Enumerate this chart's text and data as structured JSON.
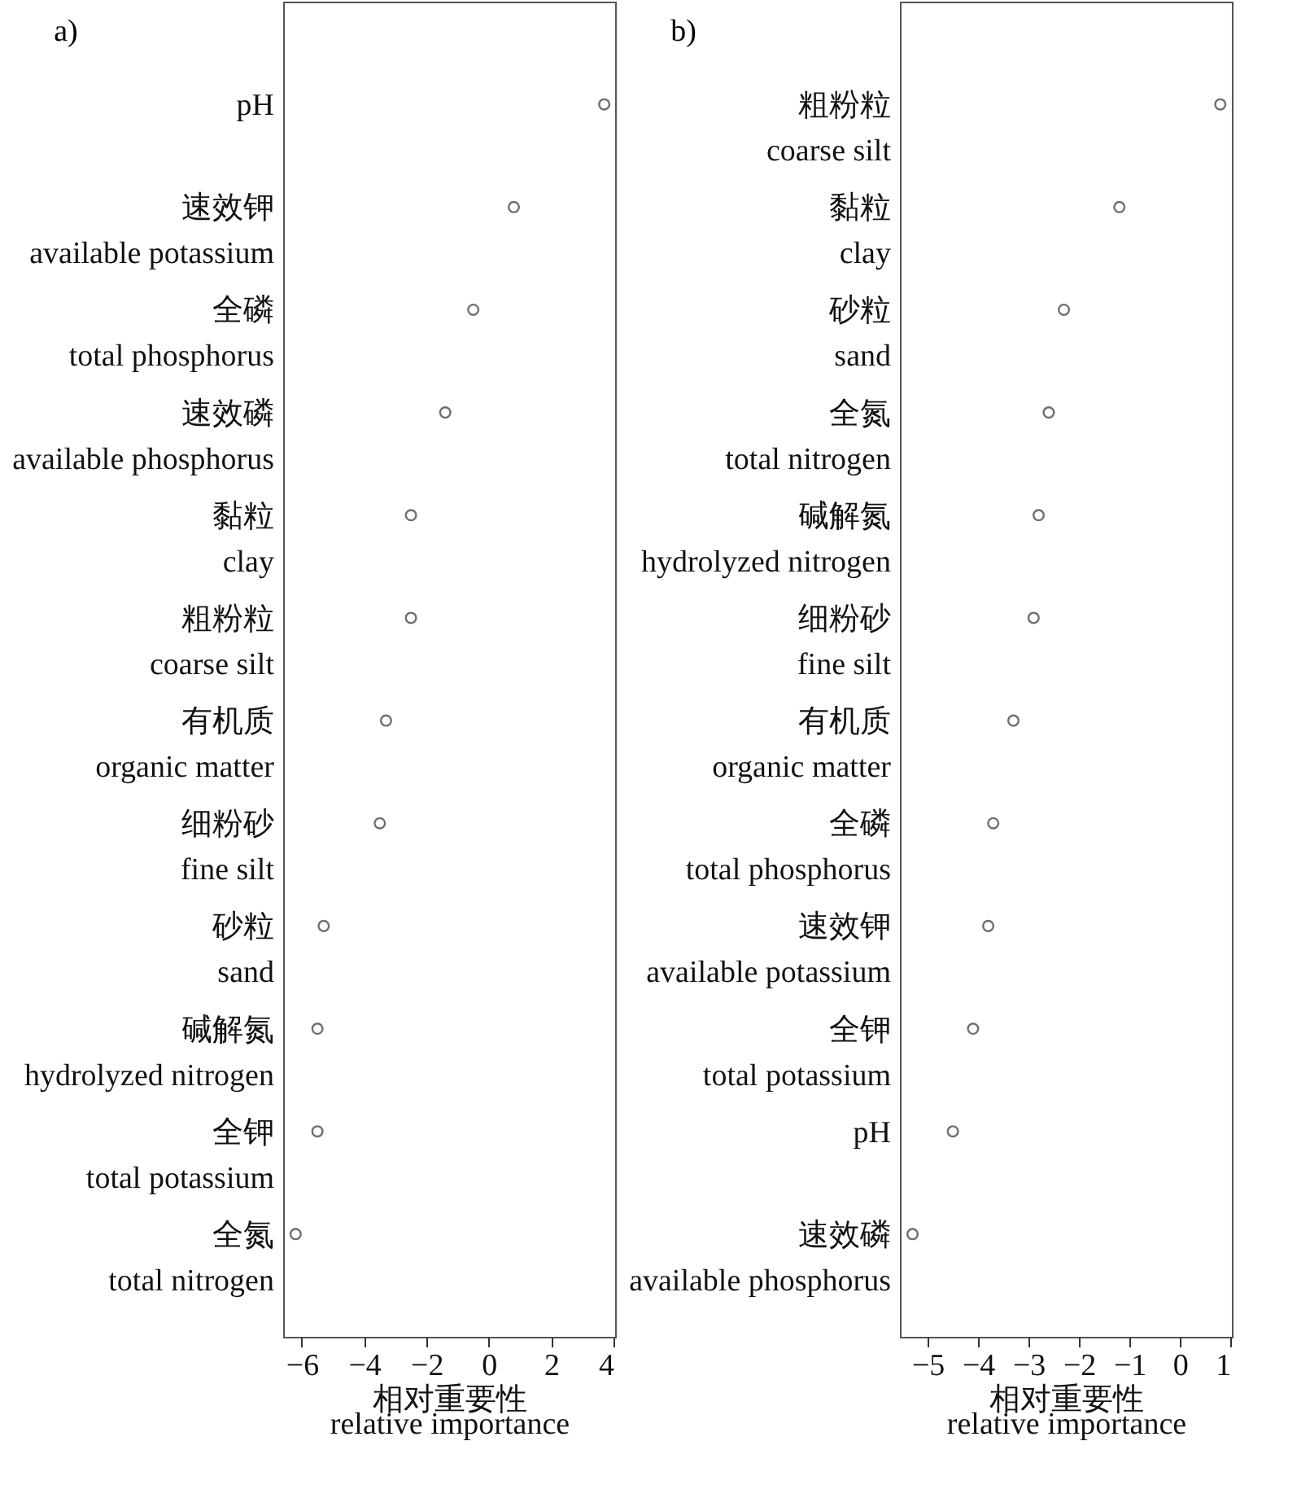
{
  "chart_data": [
    {
      "type": "scatter",
      "title": "a)",
      "orientation": "horizontal",
      "marker": "circle",
      "color": "#333333",
      "xlabel": "相对重要性\nrelative importance",
      "xlim": [
        -6.6,
        4.05
      ],
      "xticks": [
        -6,
        -4,
        -2,
        0,
        2,
        4
      ],
      "categories": [
        "pH",
        "速效钾\navailable potassium",
        "全磷\ntotal phosphorus",
        "速效磷\navailable phosphorus",
        "黏粒\nclay",
        "粗粉粒\ncoarse silt",
        "有机质\norganic matter",
        "细粉砂\nfine silt",
        "砂粒\nsand",
        "碱解氮\nhydrolyzed nitrogen",
        "全钾\ntotal potassium",
        "全氮\ntotal nitrogen"
      ],
      "values": [
        3.7,
        0.8,
        -0.5,
        -1.4,
        -2.5,
        -2.5,
        -3.3,
        -3.5,
        -5.3,
        -5.5,
        -5.5,
        -6.2
      ]
    },
    {
      "type": "scatter",
      "title": "b)",
      "orientation": "horizontal",
      "marker": "circle",
      "color": "#333333",
      "xlabel": "相对重要性\nrelative importance",
      "xlim": [
        -5.55,
        1.03
      ],
      "xticks": [
        -5,
        -4,
        -3,
        -2,
        -1,
        0,
        1
      ],
      "categories": [
        "粗粉粒\ncoarse silt",
        "黏粒\nclay",
        "砂粒\nsand",
        "全氮\ntotal nitrogen",
        "碱解氮\nhydrolyzed nitrogen",
        "细粉砂\nfine silt",
        "有机质\norganic matter",
        "全磷\ntotal phosphorus",
        "速效钾\navailable potassium",
        "全钾\ntotal potassium",
        "pH",
        "速效磷\navailable phosphorus"
      ],
      "values": [
        0.8,
        -1.2,
        -2.3,
        -2.6,
        -2.8,
        -2.9,
        -3.3,
        -3.7,
        -3.8,
        -4.1,
        -4.5,
        -5.3
      ]
    }
  ]
}
